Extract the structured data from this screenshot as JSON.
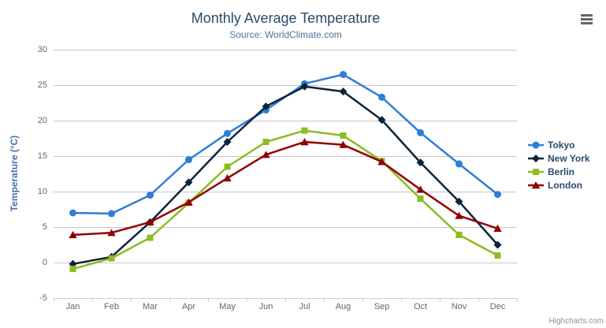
{
  "chart_data": {
    "type": "line",
    "title": "Monthly Average Temperature",
    "subtitle": "Source: WorldClimate.com",
    "ylabel": "Temperature (°C)",
    "xlabel": "",
    "categories": [
      "Jan",
      "Feb",
      "Mar",
      "Apr",
      "May",
      "Jun",
      "Jul",
      "Aug",
      "Sep",
      "Oct",
      "Nov",
      "Dec"
    ],
    "yticks": [
      30,
      25,
      20,
      15,
      10,
      5,
      0,
      -5
    ],
    "ylim": [
      -5,
      30
    ],
    "grid": true,
    "legend_position": "right",
    "series": [
      {
        "name": "Tokyo",
        "color": "#2f7ed8",
        "marker": "circle",
        "values": [
          7.0,
          6.9,
          9.5,
          14.5,
          18.2,
          21.5,
          25.2,
          26.5,
          23.3,
          18.3,
          13.9,
          9.6
        ]
      },
      {
        "name": "New York",
        "color": "#0d233a",
        "marker": "diamond",
        "values": [
          -0.2,
          0.8,
          5.7,
          11.3,
          17.0,
          22.0,
          24.8,
          24.1,
          20.1,
          14.1,
          8.6,
          2.5
        ]
      },
      {
        "name": "Berlin",
        "color": "#8bbc21",
        "marker": "square",
        "values": [
          -0.9,
          0.6,
          3.5,
          8.4,
          13.5,
          17.0,
          18.6,
          17.9,
          14.3,
          9.0,
          3.9,
          1.0
        ]
      },
      {
        "name": "London",
        "color": "#910000",
        "marker": "triangle",
        "values": [
          3.9,
          4.2,
          5.7,
          8.5,
          11.9,
          15.2,
          17.0,
          16.6,
          14.2,
          10.3,
          6.6,
          4.8
        ]
      }
    ]
  },
  "credit": {
    "label": "Highcharts.com"
  },
  "menu": {
    "icon": "hamburger-icon"
  },
  "colors": {
    "title_text": "#274b6d",
    "subtitle_text": "#4d759e",
    "y_axis_title": "#4572a7",
    "axis_label": "#666666",
    "legend_text": "#274b6d",
    "credit_text": "#909090",
    "menu_icon": "#666666",
    "grid_line": "#c8c8c8",
    "axis_line": "#c0d0e0"
  }
}
